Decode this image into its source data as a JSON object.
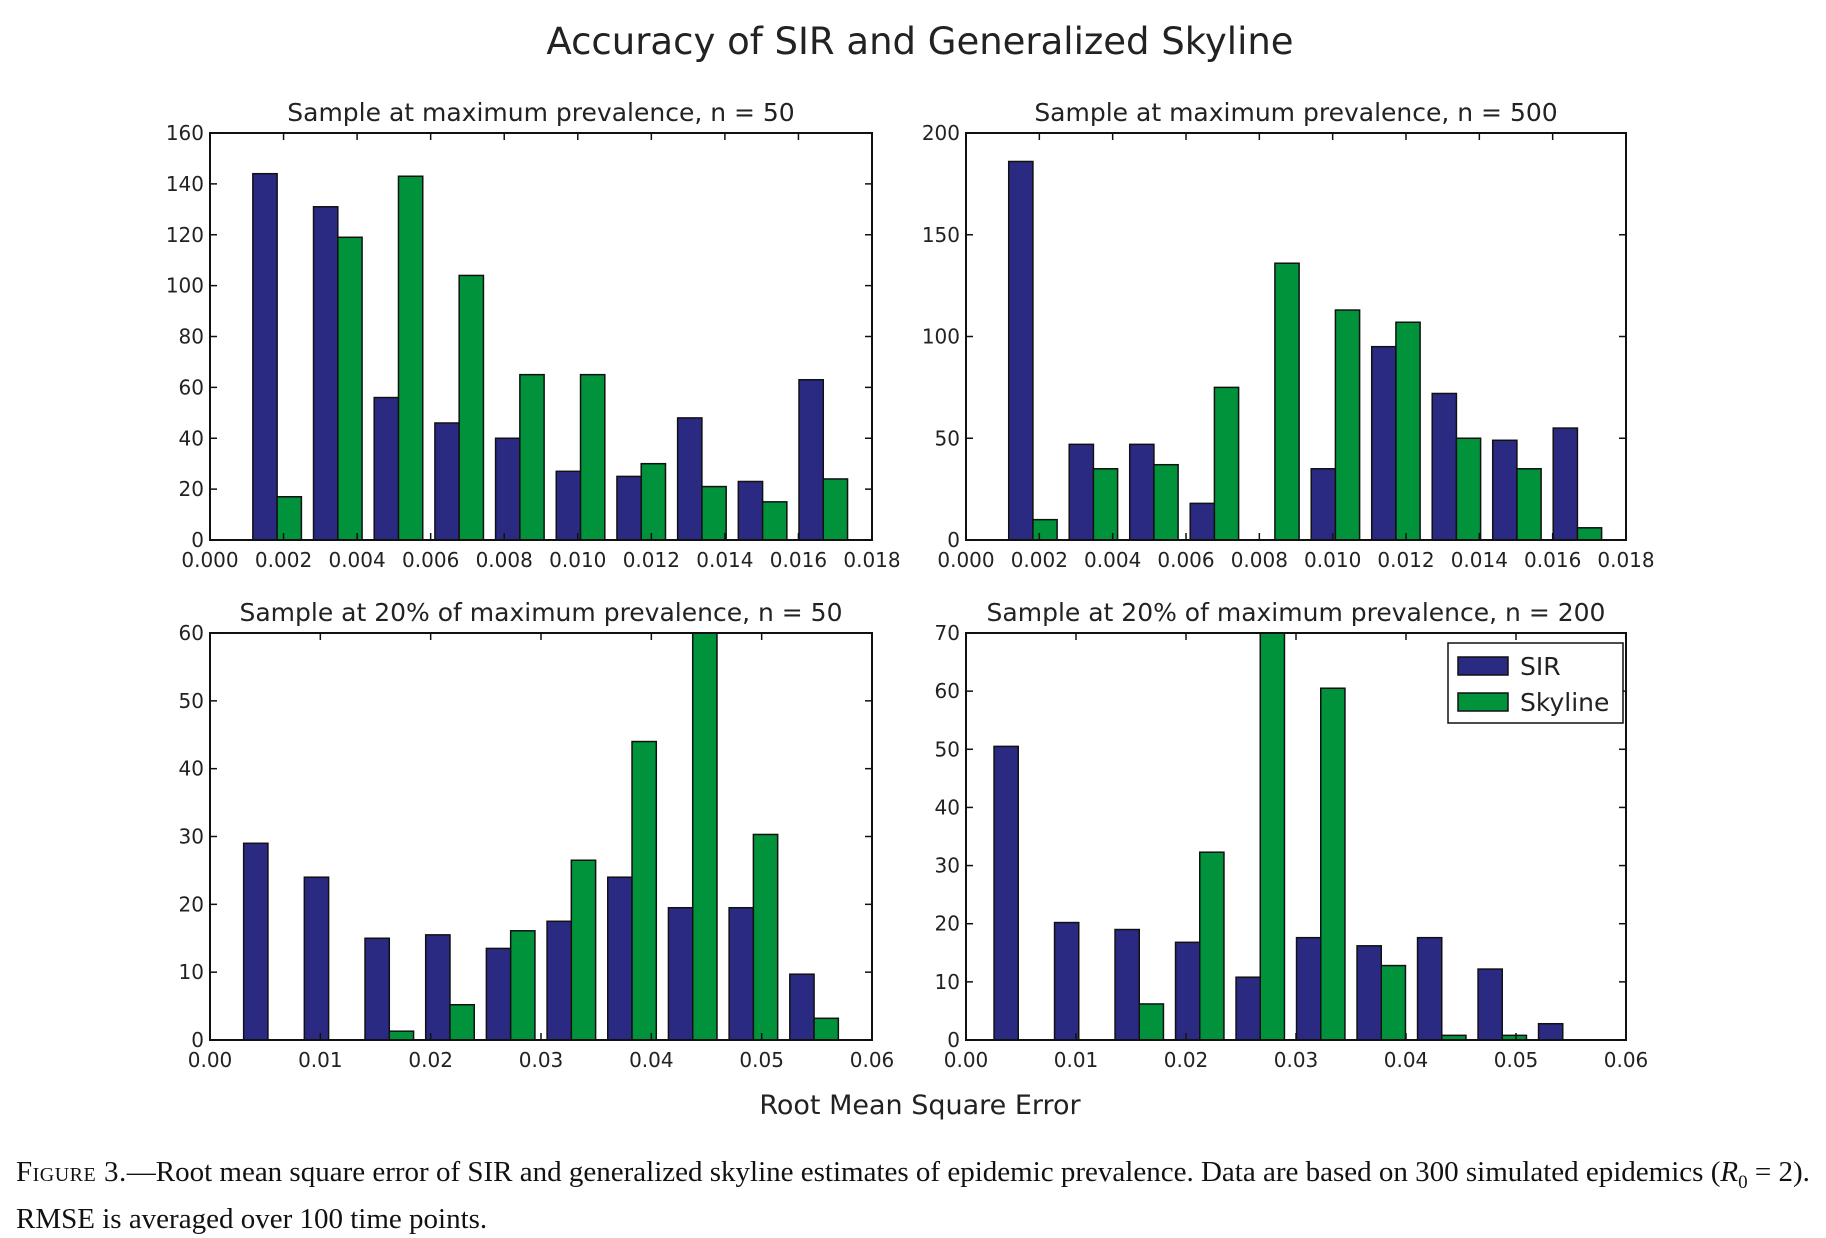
{
  "figure_title": "Accuracy of SIR and Generalized Skyline",
  "xlabel": "Root Mean Square Error",
  "legend": [
    "SIR",
    "Skyline"
  ],
  "colors": {
    "SIR": "#2b2a82",
    "Skyline": "#00933b"
  },
  "caption": {
    "label": "Figure 3.",
    "text_a": "—Root mean square error of SIR and generalized skyline estimates of epidemic prevalence. Data are based on 300 simulated epidemics (",
    "r_symbol": "R",
    "r_sub": "0",
    "text_b": " = 2). RMSE is averaged over 100 time points."
  },
  "chart_data": [
    {
      "type": "bar",
      "title": "Sample at maximum prevalence, n = 50",
      "xlim": [
        0,
        0.018
      ],
      "ylim": [
        0,
        160
      ],
      "xticks": [
        "0.000",
        "0.002",
        "0.004",
        "0.006",
        "0.008",
        "0.010",
        "0.012",
        "0.014",
        "0.016",
        "0.018"
      ],
      "yticks": [
        "0",
        "20",
        "40",
        "60",
        "80",
        "100",
        "120",
        "140",
        "160"
      ],
      "bin_edges": [
        0.001,
        0.00265,
        0.0043,
        0.00595,
        0.0076,
        0.00925,
        0.0109,
        0.01255,
        0.0142,
        0.01585,
        0.0175
      ],
      "series": [
        {
          "name": "SIR",
          "values": [
            144,
            131,
            56,
            46,
            40,
            27,
            25,
            48,
            23,
            63
          ]
        },
        {
          "name": "Skyline",
          "values": [
            17,
            119,
            143,
            104,
            65,
            65,
            30,
            21,
            15,
            24
          ]
        }
      ]
    },
    {
      "type": "bar",
      "title": "Sample at maximum prevalence, n = 500",
      "xlim": [
        0,
        0.018
      ],
      "ylim": [
        0,
        200
      ],
      "xticks": [
        "0.000",
        "0.002",
        "0.004",
        "0.006",
        "0.008",
        "0.010",
        "0.012",
        "0.014",
        "0.016",
        "0.018"
      ],
      "yticks": [
        "0",
        "50",
        "100",
        "150",
        "200"
      ],
      "bin_edges": [
        0.001,
        0.00265,
        0.0043,
        0.00595,
        0.0076,
        0.00925,
        0.0109,
        0.01255,
        0.0142,
        0.01585,
        0.0175
      ],
      "series": [
        {
          "name": "SIR",
          "values": [
            186,
            47,
            47,
            18,
            0,
            35,
            95,
            72,
            49,
            55
          ]
        },
        {
          "name": "Skyline",
          "values": [
            10,
            35,
            37,
            75,
            136,
            113,
            107,
            50,
            35,
            6
          ]
        }
      ]
    },
    {
      "type": "bar",
      "title": "Sample at 20% of maximum prevalence, n = 50",
      "xlim": [
        0,
        0.06
      ],
      "ylim": [
        0,
        60
      ],
      "xticks": [
        "0.00",
        "0.01",
        "0.02",
        "0.03",
        "0.04",
        "0.05",
        "0.06"
      ],
      "yticks": [
        "0",
        "10",
        "20",
        "30",
        "40",
        "50",
        "60"
      ],
      "bin_edges": [
        0.0025,
        0.008,
        0.0135,
        0.019,
        0.0245,
        0.03,
        0.0355,
        0.041,
        0.0465,
        0.052,
        0.0575
      ],
      "series": [
        {
          "name": "SIR",
          "values": [
            29,
            24,
            15,
            15.5,
            13.5,
            17.5,
            24,
            19.5,
            19.5,
            9.7
          ]
        },
        {
          "name": "Skyline",
          "values": [
            0,
            0,
            1.3,
            5.2,
            16.1,
            26.5,
            44,
            60,
            30.3,
            3.2
          ]
        }
      ]
    },
    {
      "type": "bar",
      "title": "Sample at 20% of maximum prevalence, n = 200",
      "xlim": [
        0,
        0.06
      ],
      "ylim": [
        0,
        70
      ],
      "xticks": [
        "0.00",
        "0.01",
        "0.02",
        "0.03",
        "0.04",
        "0.05",
        "0.06"
      ],
      "yticks": [
        "0",
        "10",
        "20",
        "30",
        "40",
        "50",
        "60",
        "70"
      ],
      "bin_edges": [
        0.002,
        0.0075,
        0.013,
        0.0185,
        0.024,
        0.0295,
        0.035,
        0.0405,
        0.046,
        0.0515,
        0.057
      ],
      "legend_placement": "top-right",
      "series": [
        {
          "name": "SIR",
          "values": [
            50.5,
            20.2,
            19,
            16.8,
            10.8,
            17.6,
            16.2,
            17.6,
            12.2,
            2.8
          ]
        },
        {
          "name": "Skyline",
          "values": [
            0,
            0,
            6.2,
            32.3,
            70,
            60.5,
            12.8,
            0.8,
            0.8,
            0
          ]
        }
      ]
    }
  ]
}
